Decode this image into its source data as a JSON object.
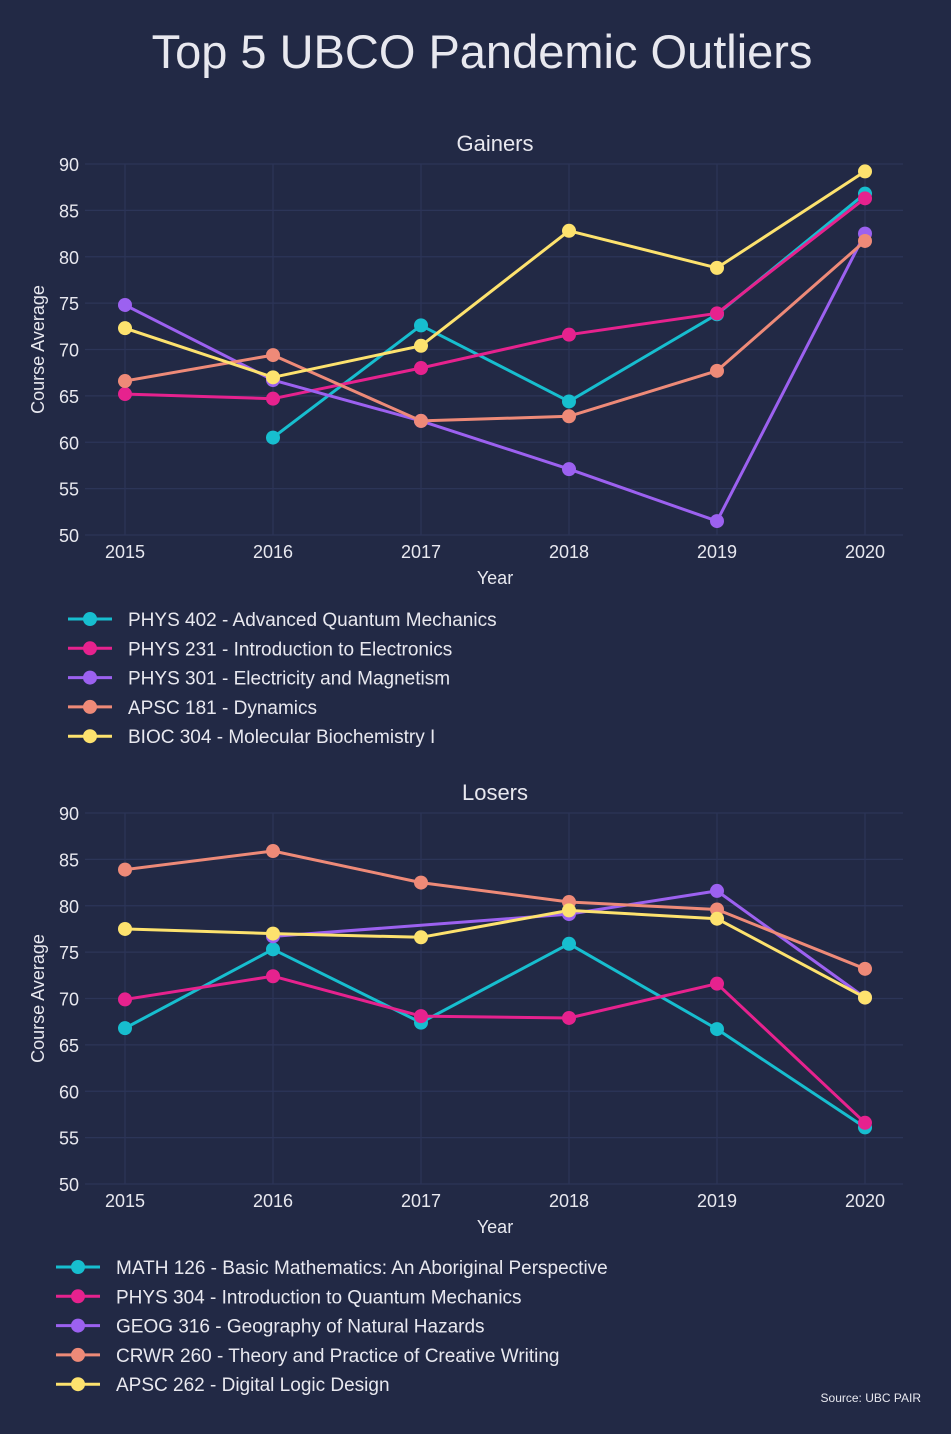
{
  "page": {
    "title": "Top 5 UBCO Pandemic Outliers",
    "source": "Source: UBC PAIR",
    "background": "#222945",
    "grid_color": "#2c3558",
    "text_color": "#e8e8ef"
  },
  "chart_data": [
    {
      "type": "line",
      "title": "Gainers",
      "xlabel": "Year",
      "ylabel": "Course Average",
      "x": [
        2015,
        2016,
        2017,
        2018,
        2019,
        2020
      ],
      "ylim": [
        50,
        90
      ],
      "yticks": [
        50,
        55,
        60,
        65,
        70,
        75,
        80,
        85,
        90
      ],
      "grid": true,
      "legend": "below",
      "series": [
        {
          "name": "PHYS 402 - Advanced Quantum Mechanics",
          "color": "#17becf",
          "values": [
            null,
            60.5,
            72.6,
            64.4,
            73.8,
            86.8
          ]
        },
        {
          "name": "PHYS 231 - Introduction to Electronics",
          "color": "#e6228e",
          "values": [
            65.2,
            64.7,
            68.0,
            71.6,
            73.9,
            86.3
          ]
        },
        {
          "name": "PHYS 301 - Electricity and Magnetism",
          "color": "#9c61f0",
          "values": [
            74.8,
            66.7,
            62.3,
            57.1,
            51.5,
            82.5
          ]
        },
        {
          "name": "APSC 181 - Dynamics",
          "color": "#ee8a78",
          "values": [
            66.6,
            69.4,
            62.3,
            62.8,
            67.7,
            81.7
          ]
        },
        {
          "name": "BIOC 304 - Molecular Biochemistry I",
          "color": "#fde26e",
          "values": [
            72.3,
            67.0,
            70.4,
            82.8,
            78.8,
            89.2
          ]
        }
      ]
    },
    {
      "type": "line",
      "title": "Losers",
      "xlabel": "Year",
      "ylabel": "Course Average",
      "x": [
        2015,
        2016,
        2017,
        2018,
        2019,
        2020
      ],
      "ylim": [
        50,
        90
      ],
      "yticks": [
        50,
        55,
        60,
        65,
        70,
        75,
        80,
        85,
        90
      ],
      "grid": true,
      "legend": "below",
      "series": [
        {
          "name": "MATH 126 - Basic Mathematics: An Aboriginal Perspective",
          "color": "#17becf",
          "values": [
            66.8,
            75.3,
            67.4,
            75.9,
            66.7,
            56.1
          ]
        },
        {
          "name": "PHYS 304 - Introduction to Quantum Mechanics",
          "color": "#e6228e",
          "values": [
            69.9,
            72.4,
            68.1,
            67.9,
            71.6,
            56.6
          ]
        },
        {
          "name": "GEOG 316 - Geography of Natural Hazards",
          "color": "#9c61f0",
          "values": [
            null,
            76.7,
            null,
            79.1,
            81.6,
            70.1
          ]
        },
        {
          "name": "CRWR 260 - Theory and Practice of Creative Writing",
          "color": "#ee8a78",
          "values": [
            83.9,
            85.9,
            82.5,
            80.4,
            79.6,
            73.2
          ]
        },
        {
          "name": "APSC 262 - Digital Logic Design",
          "color": "#fde26e",
          "values": [
            77.5,
            77.0,
            76.6,
            79.5,
            78.6,
            70.1
          ]
        }
      ]
    }
  ]
}
